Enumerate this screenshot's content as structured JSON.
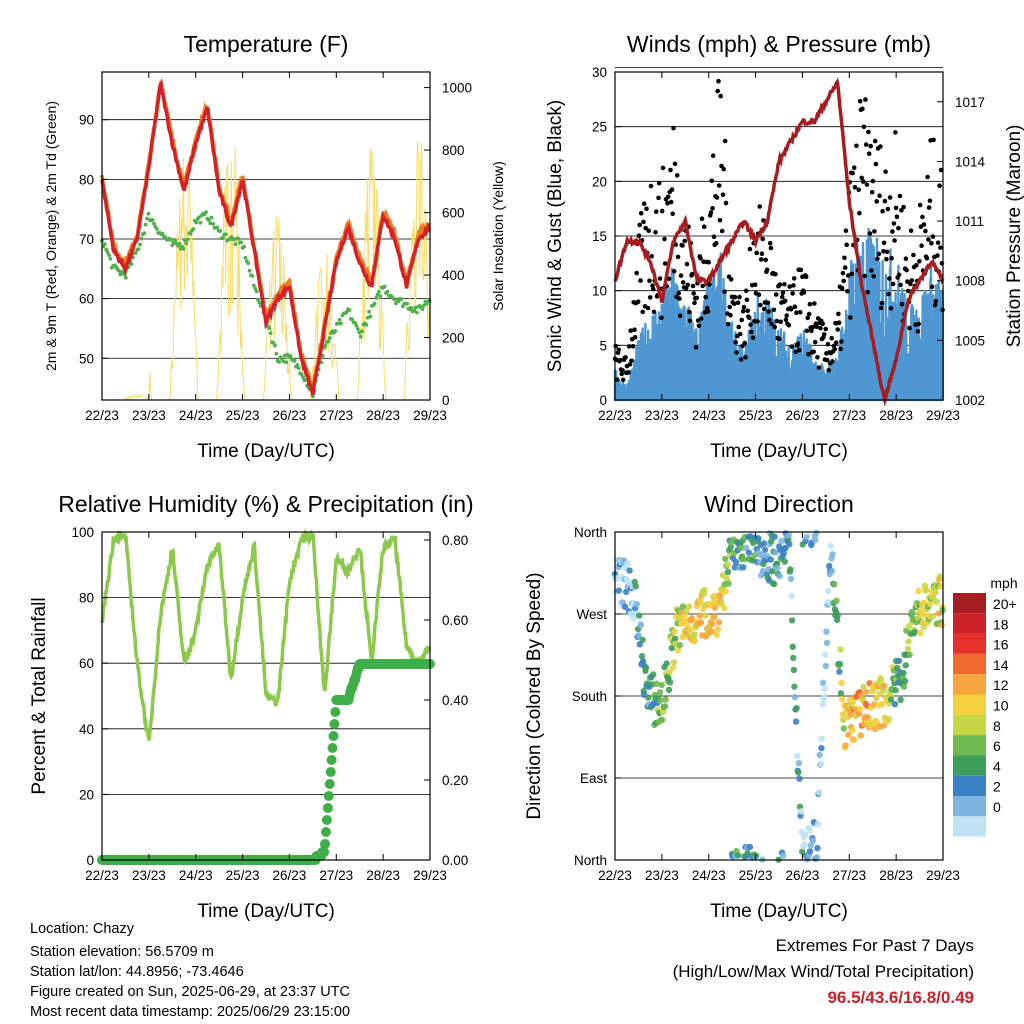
{
  "x_ticks": [
    "22/23",
    "23/23",
    "24/23",
    "25/23",
    "26/23",
    "27/23",
    "28/23",
    "29/23"
  ],
  "x_label": "Time (Day/UTC)",
  "panels": {
    "temperature": {
      "title": "Temperature (F)",
      "ylabel_left": "2m & 9m T (Red, Orange) & 2m Td (Green)",
      "ylabel_right": "Solar Insolation (Yellow)",
      "left_ticks": [
        "50",
        "60",
        "70",
        "80",
        "90"
      ],
      "right_ticks": [
        "0",
        "200",
        "400",
        "600",
        "800",
        "1000"
      ]
    },
    "winds": {
      "title": "Winds (mph) & Pressure (mb)",
      "ylabel_left": "Sonic Wind & Gust (Blue, Black)",
      "ylabel_right": "Station Pressure (Maroon)",
      "left_ticks": [
        "0",
        "5",
        "10",
        "15",
        "20",
        "25",
        "30"
      ],
      "right_ticks": [
        "1002",
        "1005",
        "1008",
        "1011",
        "1014",
        "1017"
      ]
    },
    "humidity": {
      "title": "Relative Humidity (%) & Precipitation (in)",
      "ylabel_left": "Percent & Total Rainfall",
      "left_ticks": [
        "0",
        "20",
        "40",
        "60",
        "80",
        "100"
      ],
      "right_ticks": [
        "0.00",
        "0.20",
        "0.40",
        "0.60",
        "0.80"
      ]
    },
    "direction": {
      "title": "Wind Direction",
      "ylabel_left": "Direction (Colored By Speed)",
      "left_ticks": [
        "North",
        "East",
        "South",
        "West",
        "North"
      ],
      "legend_title": "mph",
      "legend_labels": [
        "20+",
        "18",
        "16",
        "14",
        "12",
        "10",
        "8",
        "6",
        "4",
        "2",
        "0"
      ],
      "legend_colors": [
        "#a51d20",
        "#cc2127",
        "#e5322a",
        "#ef6a2c",
        "#f6a53f",
        "#f4cf3e",
        "#c6d645",
        "#6db84f",
        "#3d9d5a",
        "#3a81c3",
        "#7db5e1",
        "#bfe2f5"
      ]
    }
  },
  "colors": {
    "temp_2m": "#d42027",
    "temp_9m": "#f07b22",
    "dewpoint": "#4eb04a",
    "insolation": "#f7dd6b",
    "wind": "#4f97d3",
    "gust": "#000000",
    "pressure": "#a51d20",
    "rh": "#8cc84b",
    "precip": "#3fae49"
  },
  "chart_data": [
    {
      "type": "line",
      "title": "Temperature (F)",
      "xlabel": "Time (Day/UTC)",
      "ylabel": "2m & 9m T (Red, Orange) & 2m Td (Green)",
      "y2label": "Solar Insolation (Yellow)",
      "x": [
        22.0,
        22.25,
        22.5,
        22.75,
        23.0,
        23.25,
        23.5,
        23.75,
        24.0,
        24.25,
        24.5,
        24.75,
        25.0,
        25.25,
        25.5,
        25.75,
        26.0,
        26.25,
        26.5,
        26.75,
        27.0,
        27.25,
        27.5,
        27.75,
        28.0,
        28.25,
        28.5,
        28.75,
        29.0
      ],
      "ylim": [
        43,
        98
      ],
      "y2lim": [
        0,
        1050
      ],
      "series": [
        {
          "name": "2m T",
          "values": [
            80,
            68,
            65,
            70,
            82,
            96,
            86,
            78,
            86,
            92,
            78,
            72,
            80,
            68,
            56,
            60,
            62,
            50,
            44,
            55,
            66,
            72,
            66,
            62,
            74,
            70,
            62,
            70,
            72
          ]
        },
        {
          "name": "2m Td",
          "values": [
            70,
            65,
            64,
            68,
            74,
            71,
            69,
            69,
            73,
            74,
            71,
            70,
            69,
            62,
            57,
            50,
            50,
            48,
            44,
            52,
            55,
            58,
            54,
            58,
            62,
            60,
            59,
            58,
            60
          ]
        },
        {
          "name": "Solar Insolation",
          "values": [
            100,
            0,
            0,
            300,
            800,
            900,
            0,
            0,
            950,
            900,
            0,
            0,
            700,
            600,
            0,
            0,
            500,
            500,
            0,
            0,
            700,
            900,
            0,
            0,
            800,
            950,
            0,
            0,
            950
          ]
        }
      ]
    },
    {
      "type": "scatter",
      "title": "Winds (mph) & Pressure (mb)",
      "xlabel": "Time (Day/UTC)",
      "ylabel": "Sonic Wind & Gust (Blue, Black)",
      "y2label": "Station Pressure (Maroon)",
      "x": [
        22.0,
        22.25,
        22.5,
        22.75,
        23.0,
        23.25,
        23.5,
        23.75,
        24.0,
        24.25,
        24.5,
        24.75,
        25.0,
        25.25,
        25.5,
        25.75,
        26.0,
        26.25,
        26.5,
        26.75,
        27.0,
        27.25,
        27.5,
        27.75,
        28.0,
        28.25,
        28.5,
        28.75,
        29.0
      ],
      "ylim": [
        0,
        30
      ],
      "y2lim": [
        1002,
        1018.5
      ],
      "series": [
        {
          "name": "Wind",
          "values": [
            2,
            1,
            4,
            6,
            7,
            9,
            7,
            5,
            8,
            10,
            5,
            3,
            7,
            7,
            5,
            4,
            5,
            3,
            2,
            3,
            9,
            12,
            11,
            10,
            10,
            6,
            7,
            9,
            8
          ]
        },
        {
          "name": "Gust",
          "values": [
            4,
            3,
            12,
            17,
            16,
            21,
            14,
            10,
            17,
            24,
            10,
            7,
            14,
            13,
            9,
            8,
            10,
            7,
            5,
            6,
            16,
            22,
            20,
            18,
            19,
            12,
            14,
            19,
            16
          ]
        },
        {
          "name": "Pressure",
          "values": [
            1008,
            1010,
            1010,
            1009,
            1007,
            1010,
            1011,
            1008,
            1008,
            1009,
            1010,
            1011,
            1010,
            1011,
            1014,
            1015,
            1016,
            1016,
            1017,
            1018,
            1012,
            1008,
            1005,
            1002,
            1004,
            1007,
            1008,
            1009,
            1008
          ]
        }
      ]
    },
    {
      "type": "line",
      "title": "Relative Humidity (%) & Precipitation (in)",
      "xlabel": "Time (Day/UTC)",
      "ylabel": "Percent & Total Rainfall",
      "x": [
        22.0,
        22.25,
        22.5,
        22.75,
        23.0,
        23.25,
        23.5,
        23.75,
        24.0,
        24.25,
        24.5,
        24.75,
        25.0,
        25.25,
        25.5,
        25.75,
        26.0,
        26.25,
        26.5,
        26.75,
        27.0,
        27.25,
        27.5,
        27.75,
        28.0,
        28.25,
        28.5,
        28.75,
        29.0
      ],
      "ylim": [
        0,
        100
      ],
      "y2lim": [
        0,
        0.82
      ],
      "series": [
        {
          "name": "Relative Humidity",
          "values": [
            73,
            98,
            99,
            60,
            35,
            75,
            95,
            60,
            70,
            90,
            96,
            55,
            80,
            96,
            50,
            48,
            85,
            98,
            99,
            50,
            92,
            88,
            96,
            60,
            95,
            98,
            65,
            60,
            65
          ]
        },
        {
          "name": "Total Precipitation",
          "values": [
            0,
            0,
            0,
            0,
            0,
            0,
            0,
            0,
            0,
            0,
            0,
            0,
            0,
            0,
            0,
            0,
            0,
            0,
            0,
            0.02,
            0.4,
            0.4,
            0.49,
            0.49,
            0.49,
            0.49,
            0.49,
            0.49,
            0.49
          ]
        }
      ]
    },
    {
      "type": "scatter",
      "title": "Wind Direction",
      "xlabel": "Time (Day/UTC)",
      "ylabel": "Direction (Colored By Speed)",
      "y_categories": [
        "North",
        "East",
        "South",
        "West",
        "North"
      ],
      "ylim": [
        0,
        360
      ],
      "legend_title": "mph",
      "legend": [
        "20+",
        "18",
        "16",
        "14",
        "12",
        "10",
        "8",
        "6",
        "4",
        "2",
        "0"
      ],
      "x": [
        22.1,
        22.4,
        22.7,
        23.0,
        23.3,
        23.6,
        23.9,
        24.2,
        24.5,
        24.8,
        25.1,
        25.4,
        25.7,
        26.0,
        26.3,
        26.6,
        26.9,
        27.2,
        27.5,
        27.8,
        28.1,
        28.4,
        28.7,
        29.0
      ],
      "series": [
        {
          "name": "Direction",
          "values": [
            310,
            290,
            180,
            170,
            250,
            260,
            270,
            275,
            340,
            350,
            340,
            330,
            350,
            10,
            15,
            350,
            150,
            160,
            170,
            175,
            200,
            270,
            280,
            285
          ]
        },
        {
          "name": "Speed",
          "values": [
            1,
            2,
            5,
            7,
            10,
            12,
            12,
            13,
            6,
            5,
            4,
            4,
            3,
            3,
            2,
            2,
            11,
            14,
            12,
            11,
            5,
            9,
            10,
            11
          ]
        }
      ]
    }
  ],
  "footer": {
    "location": "Location: Chazy",
    "elevation": "Station elevation: 56.5709 m",
    "latlon": "Station lat/lon: 44.8956; -73.4646",
    "created": "Figure created on Sun, 2025-06-29, at 23:37 UTC",
    "recent": "Most recent data timestamp: 2025/06/29 23:15:00"
  },
  "extremes": {
    "title": "Extremes For Past 7 Days",
    "subtitle": "(High/Low/Max Wind/Total Precipitation)",
    "values": "96.5/43.6/16.8/0.49"
  }
}
